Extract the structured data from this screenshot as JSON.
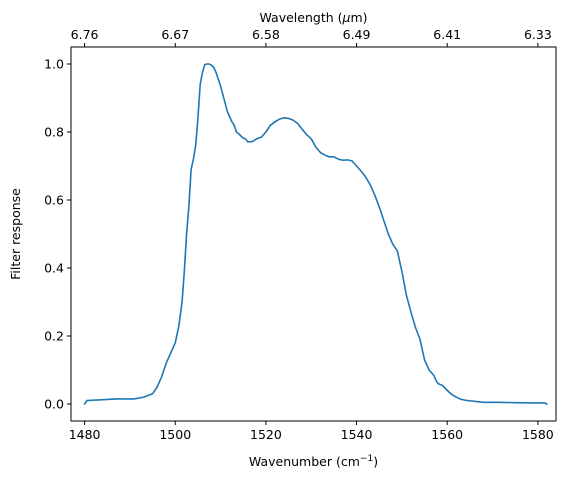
{
  "chart_data": {
    "type": "line",
    "title": "",
    "xlabel": "Wavenumber (cm",
    "xlabel_sup": "−1",
    "xlabel_close": ")",
    "ylabel": "Filter response",
    "top_xlabel_prefix": "Wavelength (",
    "top_xlabel_mu": "μ",
    "top_xlabel_suffix": "m)",
    "xlim": [
      1477,
      1584
    ],
    "ylim": [
      -0.05,
      1.05
    ],
    "xticks": [
      1480,
      1500,
      1520,
      1540,
      1560,
      1580
    ],
    "xtick_labels": [
      "1480",
      "1500",
      "1520",
      "1540",
      "1560",
      "1580"
    ],
    "yticks": [
      0.0,
      0.2,
      0.4,
      0.6,
      0.8,
      1.0
    ],
    "ytick_labels": [
      "0.0",
      "0.2",
      "0.4",
      "0.6",
      "0.8",
      "1.0"
    ],
    "top_xtick_labels": [
      "6.76",
      "6.67",
      "6.58",
      "6.49",
      "6.41",
      "6.33"
    ],
    "grid": false,
    "series": [
      {
        "color": "#1f77b4",
        "x": [
          1480.0,
          1480.5,
          1483,
          1487,
          1491,
          1493,
          1495,
          1496,
          1497,
          1498,
          1499,
          1500,
          1500.8,
          1501.5,
          1502,
          1502.5,
          1503,
          1503.5,
          1504,
          1504.5,
          1505,
          1505.5,
          1506,
          1506.5,
          1507,
          1507.5,
          1508,
          1508.5,
          1509,
          1509.5,
          1510,
          1510.5,
          1511,
          1511.5,
          1512,
          1512.5,
          1513,
          1513.5,
          1514,
          1514.5,
          1515,
          1515.5,
          1516,
          1517,
          1518,
          1519,
          1520,
          1521,
          1522,
          1523,
          1524,
          1525,
          1526,
          1527,
          1528,
          1529,
          1530,
          1531,
          1532,
          1533,
          1534,
          1535,
          1536,
          1537,
          1538,
          1539,
          1540,
          1541,
          1542,
          1543,
          1544,
          1545,
          1546,
          1547,
          1548,
          1549,
          1550,
          1551,
          1552,
          1553,
          1554,
          1555,
          1556,
          1557,
          1557.5,
          1558,
          1559,
          1560,
          1561,
          1562,
          1563,
          1564,
          1566,
          1568,
          1571,
          1575,
          1579,
          1581.5,
          1582
        ],
        "y": [
          0.0,
          0.01,
          0.012,
          0.015,
          0.015,
          0.02,
          0.03,
          0.05,
          0.08,
          0.12,
          0.15,
          0.18,
          0.23,
          0.3,
          0.39,
          0.5,
          0.58,
          0.69,
          0.72,
          0.76,
          0.84,
          0.94,
          0.975,
          0.998,
          1.0,
          1.0,
          0.996,
          0.99,
          0.975,
          0.955,
          0.935,
          0.91,
          0.885,
          0.86,
          0.845,
          0.83,
          0.82,
          0.8,
          0.795,
          0.788,
          0.782,
          0.78,
          0.771,
          0.772,
          0.78,
          0.785,
          0.8,
          0.82,
          0.83,
          0.838,
          0.842,
          0.84,
          0.835,
          0.825,
          0.808,
          0.792,
          0.78,
          0.756,
          0.74,
          0.732,
          0.727,
          0.727,
          0.72,
          0.717,
          0.718,
          0.715,
          0.7,
          0.685,
          0.668,
          0.645,
          0.615,
          0.58,
          0.54,
          0.5,
          0.47,
          0.45,
          0.39,
          0.32,
          0.27,
          0.225,
          0.19,
          0.13,
          0.1,
          0.085,
          0.07,
          0.06,
          0.054,
          0.04,
          0.028,
          0.02,
          0.014,
          0.011,
          0.008,
          0.005,
          0.005,
          0.004,
          0.003,
          0.003,
          0.0
        ]
      }
    ]
  }
}
